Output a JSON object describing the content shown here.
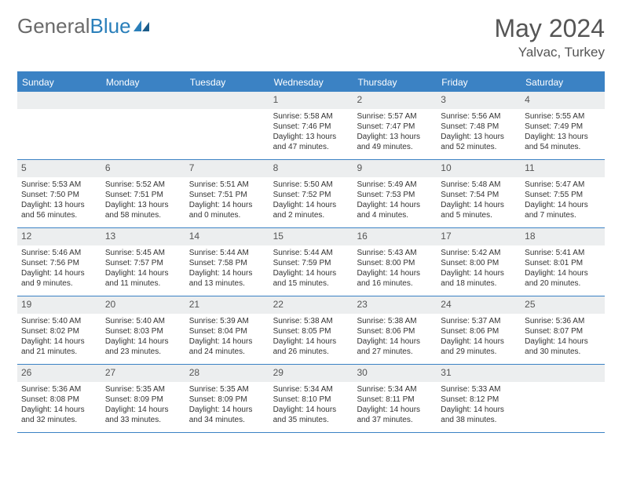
{
  "header": {
    "logo_general": "General",
    "logo_blue": "Blue",
    "month_title": "May 2024",
    "location": "Yalvac, Turkey"
  },
  "colors": {
    "header_bar": "#3b82c4",
    "daynum_bg": "#eceeef",
    "text": "#333333",
    "title": "#555555"
  },
  "day_names": [
    "Sunday",
    "Monday",
    "Tuesday",
    "Wednesday",
    "Thursday",
    "Friday",
    "Saturday"
  ],
  "weeks": [
    [
      {
        "n": "",
        "sunrise": "",
        "sunset": "",
        "daylight": ""
      },
      {
        "n": "",
        "sunrise": "",
        "sunset": "",
        "daylight": ""
      },
      {
        "n": "",
        "sunrise": "",
        "sunset": "",
        "daylight": ""
      },
      {
        "n": "1",
        "sunrise": "Sunrise: 5:58 AM",
        "sunset": "Sunset: 7:46 PM",
        "daylight": "Daylight: 13 hours and 47 minutes."
      },
      {
        "n": "2",
        "sunrise": "Sunrise: 5:57 AM",
        "sunset": "Sunset: 7:47 PM",
        "daylight": "Daylight: 13 hours and 49 minutes."
      },
      {
        "n": "3",
        "sunrise": "Sunrise: 5:56 AM",
        "sunset": "Sunset: 7:48 PM",
        "daylight": "Daylight: 13 hours and 52 minutes."
      },
      {
        "n": "4",
        "sunrise": "Sunrise: 5:55 AM",
        "sunset": "Sunset: 7:49 PM",
        "daylight": "Daylight: 13 hours and 54 minutes."
      }
    ],
    [
      {
        "n": "5",
        "sunrise": "Sunrise: 5:53 AM",
        "sunset": "Sunset: 7:50 PM",
        "daylight": "Daylight: 13 hours and 56 minutes."
      },
      {
        "n": "6",
        "sunrise": "Sunrise: 5:52 AM",
        "sunset": "Sunset: 7:51 PM",
        "daylight": "Daylight: 13 hours and 58 minutes."
      },
      {
        "n": "7",
        "sunrise": "Sunrise: 5:51 AM",
        "sunset": "Sunset: 7:51 PM",
        "daylight": "Daylight: 14 hours and 0 minutes."
      },
      {
        "n": "8",
        "sunrise": "Sunrise: 5:50 AM",
        "sunset": "Sunset: 7:52 PM",
        "daylight": "Daylight: 14 hours and 2 minutes."
      },
      {
        "n": "9",
        "sunrise": "Sunrise: 5:49 AM",
        "sunset": "Sunset: 7:53 PM",
        "daylight": "Daylight: 14 hours and 4 minutes."
      },
      {
        "n": "10",
        "sunrise": "Sunrise: 5:48 AM",
        "sunset": "Sunset: 7:54 PM",
        "daylight": "Daylight: 14 hours and 5 minutes."
      },
      {
        "n": "11",
        "sunrise": "Sunrise: 5:47 AM",
        "sunset": "Sunset: 7:55 PM",
        "daylight": "Daylight: 14 hours and 7 minutes."
      }
    ],
    [
      {
        "n": "12",
        "sunrise": "Sunrise: 5:46 AM",
        "sunset": "Sunset: 7:56 PM",
        "daylight": "Daylight: 14 hours and 9 minutes."
      },
      {
        "n": "13",
        "sunrise": "Sunrise: 5:45 AM",
        "sunset": "Sunset: 7:57 PM",
        "daylight": "Daylight: 14 hours and 11 minutes."
      },
      {
        "n": "14",
        "sunrise": "Sunrise: 5:44 AM",
        "sunset": "Sunset: 7:58 PM",
        "daylight": "Daylight: 14 hours and 13 minutes."
      },
      {
        "n": "15",
        "sunrise": "Sunrise: 5:44 AM",
        "sunset": "Sunset: 7:59 PM",
        "daylight": "Daylight: 14 hours and 15 minutes."
      },
      {
        "n": "16",
        "sunrise": "Sunrise: 5:43 AM",
        "sunset": "Sunset: 8:00 PM",
        "daylight": "Daylight: 14 hours and 16 minutes."
      },
      {
        "n": "17",
        "sunrise": "Sunrise: 5:42 AM",
        "sunset": "Sunset: 8:00 PM",
        "daylight": "Daylight: 14 hours and 18 minutes."
      },
      {
        "n": "18",
        "sunrise": "Sunrise: 5:41 AM",
        "sunset": "Sunset: 8:01 PM",
        "daylight": "Daylight: 14 hours and 20 minutes."
      }
    ],
    [
      {
        "n": "19",
        "sunrise": "Sunrise: 5:40 AM",
        "sunset": "Sunset: 8:02 PM",
        "daylight": "Daylight: 14 hours and 21 minutes."
      },
      {
        "n": "20",
        "sunrise": "Sunrise: 5:40 AM",
        "sunset": "Sunset: 8:03 PM",
        "daylight": "Daylight: 14 hours and 23 minutes."
      },
      {
        "n": "21",
        "sunrise": "Sunrise: 5:39 AM",
        "sunset": "Sunset: 8:04 PM",
        "daylight": "Daylight: 14 hours and 24 minutes."
      },
      {
        "n": "22",
        "sunrise": "Sunrise: 5:38 AM",
        "sunset": "Sunset: 8:05 PM",
        "daylight": "Daylight: 14 hours and 26 minutes."
      },
      {
        "n": "23",
        "sunrise": "Sunrise: 5:38 AM",
        "sunset": "Sunset: 8:06 PM",
        "daylight": "Daylight: 14 hours and 27 minutes."
      },
      {
        "n": "24",
        "sunrise": "Sunrise: 5:37 AM",
        "sunset": "Sunset: 8:06 PM",
        "daylight": "Daylight: 14 hours and 29 minutes."
      },
      {
        "n": "25",
        "sunrise": "Sunrise: 5:36 AM",
        "sunset": "Sunset: 8:07 PM",
        "daylight": "Daylight: 14 hours and 30 minutes."
      }
    ],
    [
      {
        "n": "26",
        "sunrise": "Sunrise: 5:36 AM",
        "sunset": "Sunset: 8:08 PM",
        "daylight": "Daylight: 14 hours and 32 minutes."
      },
      {
        "n": "27",
        "sunrise": "Sunrise: 5:35 AM",
        "sunset": "Sunset: 8:09 PM",
        "daylight": "Daylight: 14 hours and 33 minutes."
      },
      {
        "n": "28",
        "sunrise": "Sunrise: 5:35 AM",
        "sunset": "Sunset: 8:09 PM",
        "daylight": "Daylight: 14 hours and 34 minutes."
      },
      {
        "n": "29",
        "sunrise": "Sunrise: 5:34 AM",
        "sunset": "Sunset: 8:10 PM",
        "daylight": "Daylight: 14 hours and 35 minutes."
      },
      {
        "n": "30",
        "sunrise": "Sunrise: 5:34 AM",
        "sunset": "Sunset: 8:11 PM",
        "daylight": "Daylight: 14 hours and 37 minutes."
      },
      {
        "n": "31",
        "sunrise": "Sunrise: 5:33 AM",
        "sunset": "Sunset: 8:12 PM",
        "daylight": "Daylight: 14 hours and 38 minutes."
      },
      {
        "n": "",
        "sunrise": "",
        "sunset": "",
        "daylight": ""
      }
    ]
  ]
}
